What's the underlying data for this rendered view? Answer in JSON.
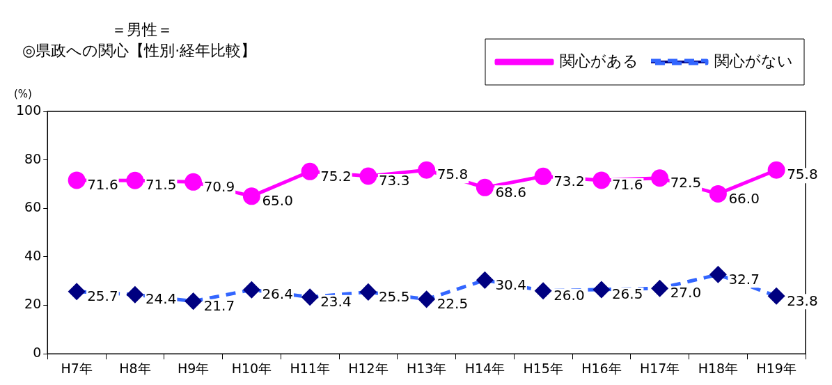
{
  "chart_data": {
    "type": "line",
    "subtitle": "＝男性＝",
    "title": "◎県政への関心【性別·経年比較】",
    "ylabel": "(%)",
    "categories": [
      "H7年",
      "H8年",
      "H9年",
      "H10年",
      "H11年",
      "H12年",
      "H13年",
      "H14年",
      "H15年",
      "H16年",
      "H17年",
      "H18年",
      "H19年"
    ],
    "series": [
      {
        "name": "関心がある",
        "color": "#ff00ff",
        "marker": "circle",
        "line_style": "solid",
        "values": [
          71.6,
          71.5,
          70.9,
          65.0,
          75.2,
          73.3,
          75.8,
          68.6,
          73.2,
          71.6,
          72.5,
          66.0,
          75.8
        ],
        "value_labels": [
          "71.6",
          "71.5",
          "70.9",
          "65.0",
          "75.2",
          "73.3",
          "75.8",
          "68.6",
          "73.2",
          "71.6",
          "72.5",
          "66.0",
          "75.8"
        ]
      },
      {
        "name": "関心がない",
        "color": "#3366ff",
        "colors": [
          "#000080",
          "#000080",
          "#000080",
          "#000080",
          "#000080",
          "#000080",
          "#000080",
          "#000080",
          "#000080",
          "#000080",
          "#000080",
          "#000080",
          "#000080"
        ],
        "marker": "diamond",
        "line_style": "dashed",
        "values": [
          25.7,
          24.4,
          21.7,
          26.4,
          23.4,
          25.5,
          22.5,
          30.4,
          26.0,
          26.5,
          27.0,
          32.7,
          23.8
        ],
        "value_labels": [
          "25.7",
          "24.4",
          "21.7",
          "26.4",
          "23.4",
          "25.5",
          "22.5",
          "30.4",
          "26.0",
          "26.5",
          "27.0",
          "32.7",
          "23.8"
        ]
      }
    ],
    "ylim": [
      0,
      100
    ],
    "yticks": [
      0,
      20,
      40,
      60,
      80,
      100
    ],
    "grid": false,
    "legend": "top right"
  }
}
